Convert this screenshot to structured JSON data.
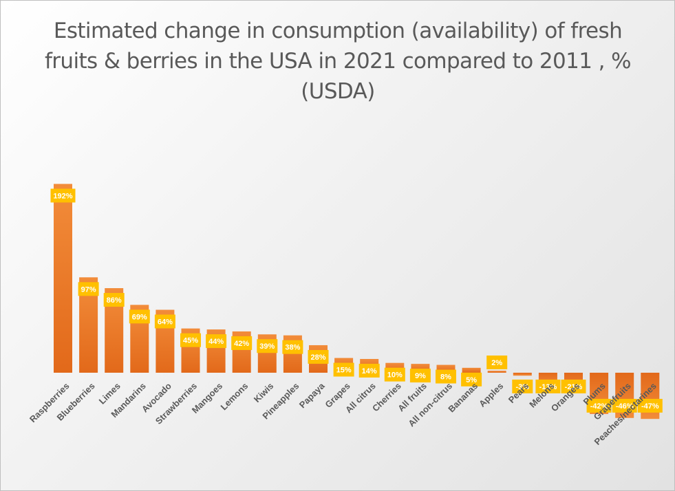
{
  "chart_data": {
    "type": "bar",
    "title": "Estimated change in consumption (availability) of fresh fruits & berries in the USA in 2021 compared to 2011 , % (USDA)",
    "xlabel": "",
    "ylabel": "",
    "categories": [
      "Raspberries",
      "Blueberries",
      "Limes",
      "Mandarins",
      "Avocado",
      "Strawberries",
      "Mangoes",
      "Lemons",
      "Kiwis",
      "Pineapples",
      "Papaya",
      "Grapes",
      "All citrus",
      "Cherries",
      "All fruits",
      "All non-citrus",
      "Bananas",
      "Apples",
      "Pears",
      "Melons",
      "Oranges",
      "Plums",
      "Grapefruits",
      "Peaches/nectarines"
    ],
    "values": [
      192,
      97,
      86,
      69,
      64,
      45,
      44,
      42,
      39,
      38,
      28,
      15,
      14,
      10,
      9,
      8,
      5,
      2,
      -3,
      -13,
      -21,
      -42,
      -46,
      -47
    ],
    "data_labels": [
      "192%",
      "97%",
      "86%",
      "69%",
      "64%",
      "45%",
      "44%",
      "42%",
      "39%",
      "38%",
      "28%",
      "15%",
      "14%",
      "10%",
      "9%",
      "8%",
      "5%",
      "2%",
      "-3%",
      "-13%",
      "-21%",
      "-42%",
      "-46%",
      "-47%"
    ],
    "ylim": [
      -50,
      200
    ],
    "grid": false,
    "legend": "none",
    "colors": {
      "bar": "#ed7d31",
      "bar_light": "#f4a15e",
      "label_bg": "#ffc000",
      "label_text": "#ffffff",
      "tick": "#595959"
    }
  }
}
